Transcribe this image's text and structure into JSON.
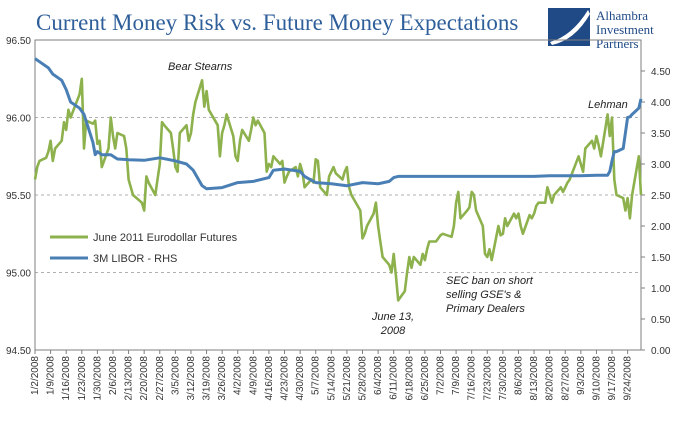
{
  "chart_data": {
    "type": "line",
    "title": "Current Money Risk vs. Future Money Expectations",
    "logo": {
      "line1": "Alhambra",
      "line2": "Investment",
      "line3": "Partners"
    },
    "left_axis": {
      "ylim": [
        94.5,
        96.5
      ],
      "ticks": [
        94.5,
        95.0,
        95.5,
        96.0,
        96.5
      ],
      "tick_labels": [
        "94.50",
        "95.00",
        "95.50",
        "96.00",
        "96.50"
      ]
    },
    "right_axis": {
      "ylim": [
        0,
        5
      ],
      "ticks": [
        0,
        0.5,
        1,
        1.5,
        2,
        2.5,
        3,
        3.5,
        4,
        4.5
      ],
      "tick_labels": [
        "0.00",
        "0.50",
        "1.00",
        "1.50",
        "2.00",
        "2.50",
        "3.00",
        "3.50",
        "4.00",
        "4.50"
      ]
    },
    "grid": {
      "horizontal": true,
      "style": "dashed"
    },
    "x_tick_labels": [
      "1/2/2008",
      "1/9/2008",
      "1/16/2008",
      "1/23/2008",
      "1/30/2008",
      "2/6/2008",
      "2/13/2008",
      "2/20/2008",
      "2/27/2008",
      "3/5/2008",
      "3/12/2008",
      "3/19/2008",
      "3/26/2008",
      "4/2/2008",
      "4/9/2008",
      "4/16/2008",
      "4/23/2008",
      "4/30/2008",
      "5/7/2008",
      "5/14/2008",
      "5/21/2008",
      "5/28/2008",
      "6/4/2008",
      "6/11/2008",
      "6/18/2008",
      "6/25/2008",
      "7/2/2008",
      "7/9/2008",
      "7/16/2008",
      "7/23/2008",
      "7/30/2008",
      "8/6/2008",
      "8/13/2008",
      "8/20/2008",
      "8/27/2008",
      "9/3/2008",
      "9/10/2008",
      "9/17/2008",
      "9/24/2008"
    ],
    "x_range": [
      "1/2/2008",
      "9/30/2008"
    ],
    "legend": {
      "placement": "middle-left",
      "entries": [
        "June 2011 Eurodollar Futures",
        "3M LIBOR - RHS"
      ]
    },
    "annotations": [
      {
        "text": "Bear Stearns",
        "style": "italic"
      },
      {
        "text": "Lehman",
        "style": "italic"
      },
      {
        "lines": [
          "June 13,",
          "2008"
        ],
        "style": "italic"
      },
      {
        "lines": [
          "SEC ban on short",
          "selling GSE's &",
          "Primary Dealers"
        ],
        "style": "italic"
      }
    ],
    "series": [
      {
        "name": "June 2011 Eurodollar Futures",
        "axis": "left",
        "color": "#8db14c",
        "points": [
          [
            "1/2/2008",
            95.6
          ],
          [
            "1/3/2008",
            95.68
          ],
          [
            "1/4/2008",
            95.72
          ],
          [
            "1/7/2008",
            95.74
          ],
          [
            "1/8/2008",
            95.78
          ],
          [
            "1/9/2008",
            95.85
          ],
          [
            "1/10/2008",
            95.72
          ],
          [
            "1/11/2008",
            95.8
          ],
          [
            "1/14/2008",
            95.85
          ],
          [
            "1/15/2008",
            95.97
          ],
          [
            "1/16/2008",
            95.92
          ],
          [
            "1/17/2008",
            96.05
          ],
          [
            "1/18/2008",
            96.0
          ],
          [
            "1/22/2008",
            96.15
          ],
          [
            "1/23/2008",
            96.25
          ],
          [
            "1/24/2008",
            95.8
          ],
          [
            "1/25/2008",
            95.98
          ],
          [
            "1/28/2008",
            95.96
          ],
          [
            "1/29/2008",
            95.98
          ],
          [
            "1/30/2008",
            95.83
          ],
          [
            "1/31/2008",
            95.85
          ],
          [
            "2/1/2008",
            95.68
          ],
          [
            "2/4/2008",
            95.8
          ],
          [
            "2/5/2008",
            96.0
          ],
          [
            "2/6/2008",
            95.88
          ],
          [
            "2/7/2008",
            95.8
          ],
          [
            "2/8/2008",
            95.9
          ],
          [
            "2/11/2008",
            95.88
          ],
          [
            "2/12/2008",
            95.8
          ],
          [
            "2/13/2008",
            95.6
          ],
          [
            "2/14/2008",
            95.55
          ],
          [
            "2/15/2008",
            95.5
          ],
          [
            "2/19/2008",
            95.45
          ],
          [
            "2/20/2008",
            95.4
          ],
          [
            "2/21/2008",
            95.62
          ],
          [
            "2/22/2008",
            95.58
          ],
          [
            "2/25/2008",
            95.5
          ],
          [
            "2/26/2008",
            95.6
          ],
          [
            "2/27/2008",
            95.7
          ],
          [
            "2/28/2008",
            95.97
          ],
          [
            "2/29/2008",
            95.95
          ],
          [
            "3/3/2008",
            95.9
          ],
          [
            "3/4/2008",
            95.8
          ],
          [
            "3/5/2008",
            95.68
          ],
          [
            "3/6/2008",
            95.65
          ],
          [
            "3/7/2008",
            95.9
          ],
          [
            "3/10/2008",
            95.95
          ],
          [
            "3/11/2008",
            95.85
          ],
          [
            "3/12/2008",
            95.9
          ],
          [
            "3/13/2008",
            96.02
          ],
          [
            "3/14/2008",
            96.1
          ],
          [
            "3/17/2008",
            96.24
          ],
          [
            "3/18/2008",
            96.07
          ],
          [
            "3/19/2008",
            96.17
          ],
          [
            "3/20/2008",
            96.05
          ],
          [
            "3/24/2008",
            95.95
          ],
          [
            "3/25/2008",
            95.75
          ],
          [
            "3/26/2008",
            95.9
          ],
          [
            "3/27/2008",
            95.95
          ],
          [
            "3/28/2008",
            96.02
          ],
          [
            "3/31/2008",
            95.88
          ],
          [
            "4/1/2008",
            95.75
          ],
          [
            "4/2/2008",
            95.72
          ],
          [
            "4/3/2008",
            95.85
          ],
          [
            "4/4/2008",
            95.92
          ],
          [
            "4/7/2008",
            95.85
          ],
          [
            "4/8/2008",
            95.92
          ],
          [
            "4/9/2008",
            96.0
          ],
          [
            "4/10/2008",
            95.95
          ],
          [
            "4/11/2008",
            95.98
          ],
          [
            "4/14/2008",
            95.9
          ],
          [
            "4/15/2008",
            95.65
          ],
          [
            "4/16/2008",
            95.7
          ],
          [
            "4/17/2008",
            95.68
          ],
          [
            "4/18/2008",
            95.75
          ],
          [
            "4/21/2008",
            95.7
          ],
          [
            "4/22/2008",
            95.72
          ],
          [
            "4/23/2008",
            95.58
          ],
          [
            "4/24/2008",
            95.62
          ],
          [
            "4/25/2008",
            95.65
          ],
          [
            "4/28/2008",
            95.68
          ],
          [
            "4/29/2008",
            95.62
          ],
          [
            "4/30/2008",
            95.7
          ],
          [
            "5/1/2008",
            95.65
          ],
          [
            "5/2/2008",
            95.55
          ],
          [
            "5/5/2008",
            95.6
          ],
          [
            "5/6/2008",
            95.58
          ],
          [
            "5/7/2008",
            95.73
          ],
          [
            "5/8/2008",
            95.72
          ],
          [
            "5/9/2008",
            95.55
          ],
          [
            "5/12/2008",
            95.5
          ],
          [
            "5/13/2008",
            95.62
          ],
          [
            "5/14/2008",
            95.65
          ],
          [
            "5/15/2008",
            95.68
          ],
          [
            "5/16/2008",
            95.64
          ],
          [
            "5/19/2008",
            95.6
          ],
          [
            "5/20/2008",
            95.65
          ],
          [
            "5/21/2008",
            95.68
          ],
          [
            "5/22/2008",
            95.55
          ],
          [
            "5/23/2008",
            95.5
          ],
          [
            "5/27/2008",
            95.4
          ],
          [
            "5/28/2008",
            95.22
          ],
          [
            "5/29/2008",
            95.25
          ],
          [
            "5/30/2008",
            95.3
          ],
          [
            "6/2/2008",
            95.38
          ],
          [
            "6/3/2008",
            95.45
          ],
          [
            "6/4/2008",
            95.3
          ],
          [
            "6/5/2008",
            95.2
          ],
          [
            "6/6/2008",
            95.1
          ],
          [
            "6/9/2008",
            95.05
          ],
          [
            "6/10/2008",
            95.0
          ],
          [
            "6/11/2008",
            95.12
          ],
          [
            "6/12/2008",
            94.98
          ],
          [
            "6/13/2008",
            94.82
          ],
          [
            "6/16/2008",
            94.88
          ],
          [
            "6/17/2008",
            95.0
          ],
          [
            "6/18/2008",
            95.1
          ],
          [
            "6/19/2008",
            95.03
          ],
          [
            "6/20/2008",
            95.1
          ],
          [
            "6/23/2008",
            95.05
          ],
          [
            "6/24/2008",
            95.12
          ],
          [
            "6/25/2008",
            95.08
          ],
          [
            "6/26/2008",
            95.15
          ],
          [
            "6/27/2008",
            95.2
          ],
          [
            "6/30/2008",
            95.2
          ],
          [
            "7/1/2008",
            95.22
          ],
          [
            "7/2/2008",
            95.24
          ],
          [
            "7/3/2008",
            95.25
          ],
          [
            "7/7/2008",
            95.23
          ],
          [
            "7/8/2008",
            95.3
          ],
          [
            "7/9/2008",
            95.45
          ],
          [
            "7/10/2008",
            95.52
          ],
          [
            "7/11/2008",
            95.35
          ],
          [
            "7/14/2008",
            95.4
          ],
          [
            "7/15/2008",
            95.42
          ],
          [
            "7/16/2008",
            95.52
          ],
          [
            "7/17/2008",
            95.5
          ],
          [
            "7/18/2008",
            95.4
          ],
          [
            "7/21/2008",
            95.3
          ],
          [
            "7/22/2008",
            95.12
          ],
          [
            "7/23/2008",
            95.1
          ],
          [
            "7/24/2008",
            95.15
          ],
          [
            "7/25/2008",
            95.08
          ],
          [
            "7/28/2008",
            95.3
          ],
          [
            "7/29/2008",
            95.24
          ],
          [
            "7/30/2008",
            95.25
          ],
          [
            "7/31/2008",
            95.35
          ],
          [
            "8/1/2008",
            95.3
          ],
          [
            "8/4/2008",
            95.38
          ],
          [
            "8/5/2008",
            95.35
          ],
          [
            "8/6/2008",
            95.38
          ],
          [
            "8/7/2008",
            95.3
          ],
          [
            "8/8/2008",
            95.25
          ],
          [
            "8/11/2008",
            95.37
          ],
          [
            "8/12/2008",
            95.35
          ],
          [
            "8/13/2008",
            95.38
          ],
          [
            "8/14/2008",
            95.43
          ],
          [
            "8/15/2008",
            95.45
          ],
          [
            "8/18/2008",
            95.45
          ],
          [
            "8/19/2008",
            95.55
          ],
          [
            "8/20/2008",
            95.5
          ],
          [
            "8/21/2008",
            95.45
          ],
          [
            "8/22/2008",
            95.5
          ],
          [
            "8/25/2008",
            95.55
          ],
          [
            "8/26/2008",
            95.52
          ],
          [
            "8/27/2008",
            95.55
          ],
          [
            "8/28/2008",
            95.58
          ],
          [
            "8/29/2008",
            95.6
          ],
          [
            "9/2/2008",
            95.75
          ],
          [
            "9/3/2008",
            95.7
          ],
          [
            "9/4/2008",
            95.65
          ],
          [
            "9/5/2008",
            95.8
          ],
          [
            "9/8/2008",
            95.85
          ],
          [
            "9/9/2008",
            95.8
          ],
          [
            "9/10/2008",
            95.88
          ],
          [
            "9/11/2008",
            95.82
          ],
          [
            "9/12/2008",
            95.75
          ],
          [
            "9/15/2008",
            96.02
          ],
          [
            "9/16/2008",
            95.88
          ],
          [
            "9/17/2008",
            96.0
          ],
          [
            "9/18/2008",
            95.6
          ],
          [
            "9/19/2008",
            95.5
          ],
          [
            "9/22/2008",
            95.48
          ],
          [
            "9/23/2008",
            95.4
          ],
          [
            "9/24/2008",
            95.48
          ],
          [
            "9/25/2008",
            95.35
          ],
          [
            "9/26/2008",
            95.5
          ],
          [
            "9/29/2008",
            95.75
          ],
          [
            "9/30/2008",
            95.5
          ]
        ]
      },
      {
        "name": "3M LIBOR - RHS",
        "axis": "right",
        "color": "#4a7fb5",
        "points": [
          [
            "1/2/2008",
            4.7
          ],
          [
            "1/4/2008",
            4.65
          ],
          [
            "1/8/2008",
            4.55
          ],
          [
            "1/10/2008",
            4.45
          ],
          [
            "1/14/2008",
            4.35
          ],
          [
            "1/16/2008",
            4.2
          ],
          [
            "1/18/2008",
            4.0
          ],
          [
            "1/22/2008",
            3.9
          ],
          [
            "1/24/2008",
            3.8
          ],
          [
            "1/28/2008",
            3.35
          ],
          [
            "1/29/2008",
            3.15
          ],
          [
            "1/30/2008",
            3.2
          ],
          [
            "2/1/2008",
            3.15
          ],
          [
            "2/5/2008",
            3.15
          ],
          [
            "2/8/2008",
            3.08
          ],
          [
            "2/13/2008",
            3.07
          ],
          [
            "2/20/2008",
            3.06
          ],
          [
            "2/27/2008",
            3.1
          ],
          [
            "3/5/2008",
            3.05
          ],
          [
            "3/10/2008",
            3.0
          ],
          [
            "3/13/2008",
            2.9
          ],
          [
            "3/17/2008",
            2.65
          ],
          [
            "3/19/2008",
            2.6
          ],
          [
            "3/26/2008",
            2.62
          ],
          [
            "4/2/2008",
            2.7
          ],
          [
            "4/9/2008",
            2.72
          ],
          [
            "4/16/2008",
            2.78
          ],
          [
            "4/18/2008",
            2.9
          ],
          [
            "4/23/2008",
            2.92
          ],
          [
            "4/30/2008",
            2.88
          ],
          [
            "5/2/2008",
            2.8
          ],
          [
            "5/7/2008",
            2.7
          ],
          [
            "5/14/2008",
            2.68
          ],
          [
            "5/21/2008",
            2.65
          ],
          [
            "5/28/2008",
            2.7
          ],
          [
            "6/4/2008",
            2.68
          ],
          [
            "6/9/2008",
            2.72
          ],
          [
            "6/11/2008",
            2.78
          ],
          [
            "6/13/2008",
            2.8
          ],
          [
            "6/18/2008",
            2.8
          ],
          [
            "6/25/2008",
            2.8
          ],
          [
            "7/2/2008",
            2.8
          ],
          [
            "7/9/2008",
            2.8
          ],
          [
            "7/16/2008",
            2.8
          ],
          [
            "7/23/2008",
            2.8
          ],
          [
            "7/30/2008",
            2.8
          ],
          [
            "8/6/2008",
            2.8
          ],
          [
            "8/13/2008",
            2.8
          ],
          [
            "8/20/2008",
            2.81
          ],
          [
            "8/27/2008",
            2.81
          ],
          [
            "9/3/2008",
            2.81
          ],
          [
            "9/10/2008",
            2.82
          ],
          [
            "9/15/2008",
            2.82
          ],
          [
            "9/16/2008",
            2.88
          ],
          [
            "9/17/2008",
            3.05
          ],
          [
            "9/18/2008",
            3.2
          ],
          [
            "9/19/2008",
            3.2
          ],
          [
            "9/22/2008",
            3.25
          ],
          [
            "9/23/2008",
            3.5
          ],
          [
            "9/24/2008",
            3.75
          ],
          [
            "9/25/2008",
            3.76
          ],
          [
            "9/26/2008",
            3.8
          ],
          [
            "9/29/2008",
            3.9
          ],
          [
            "9/30/2008",
            4.05
          ]
        ]
      }
    ]
  }
}
